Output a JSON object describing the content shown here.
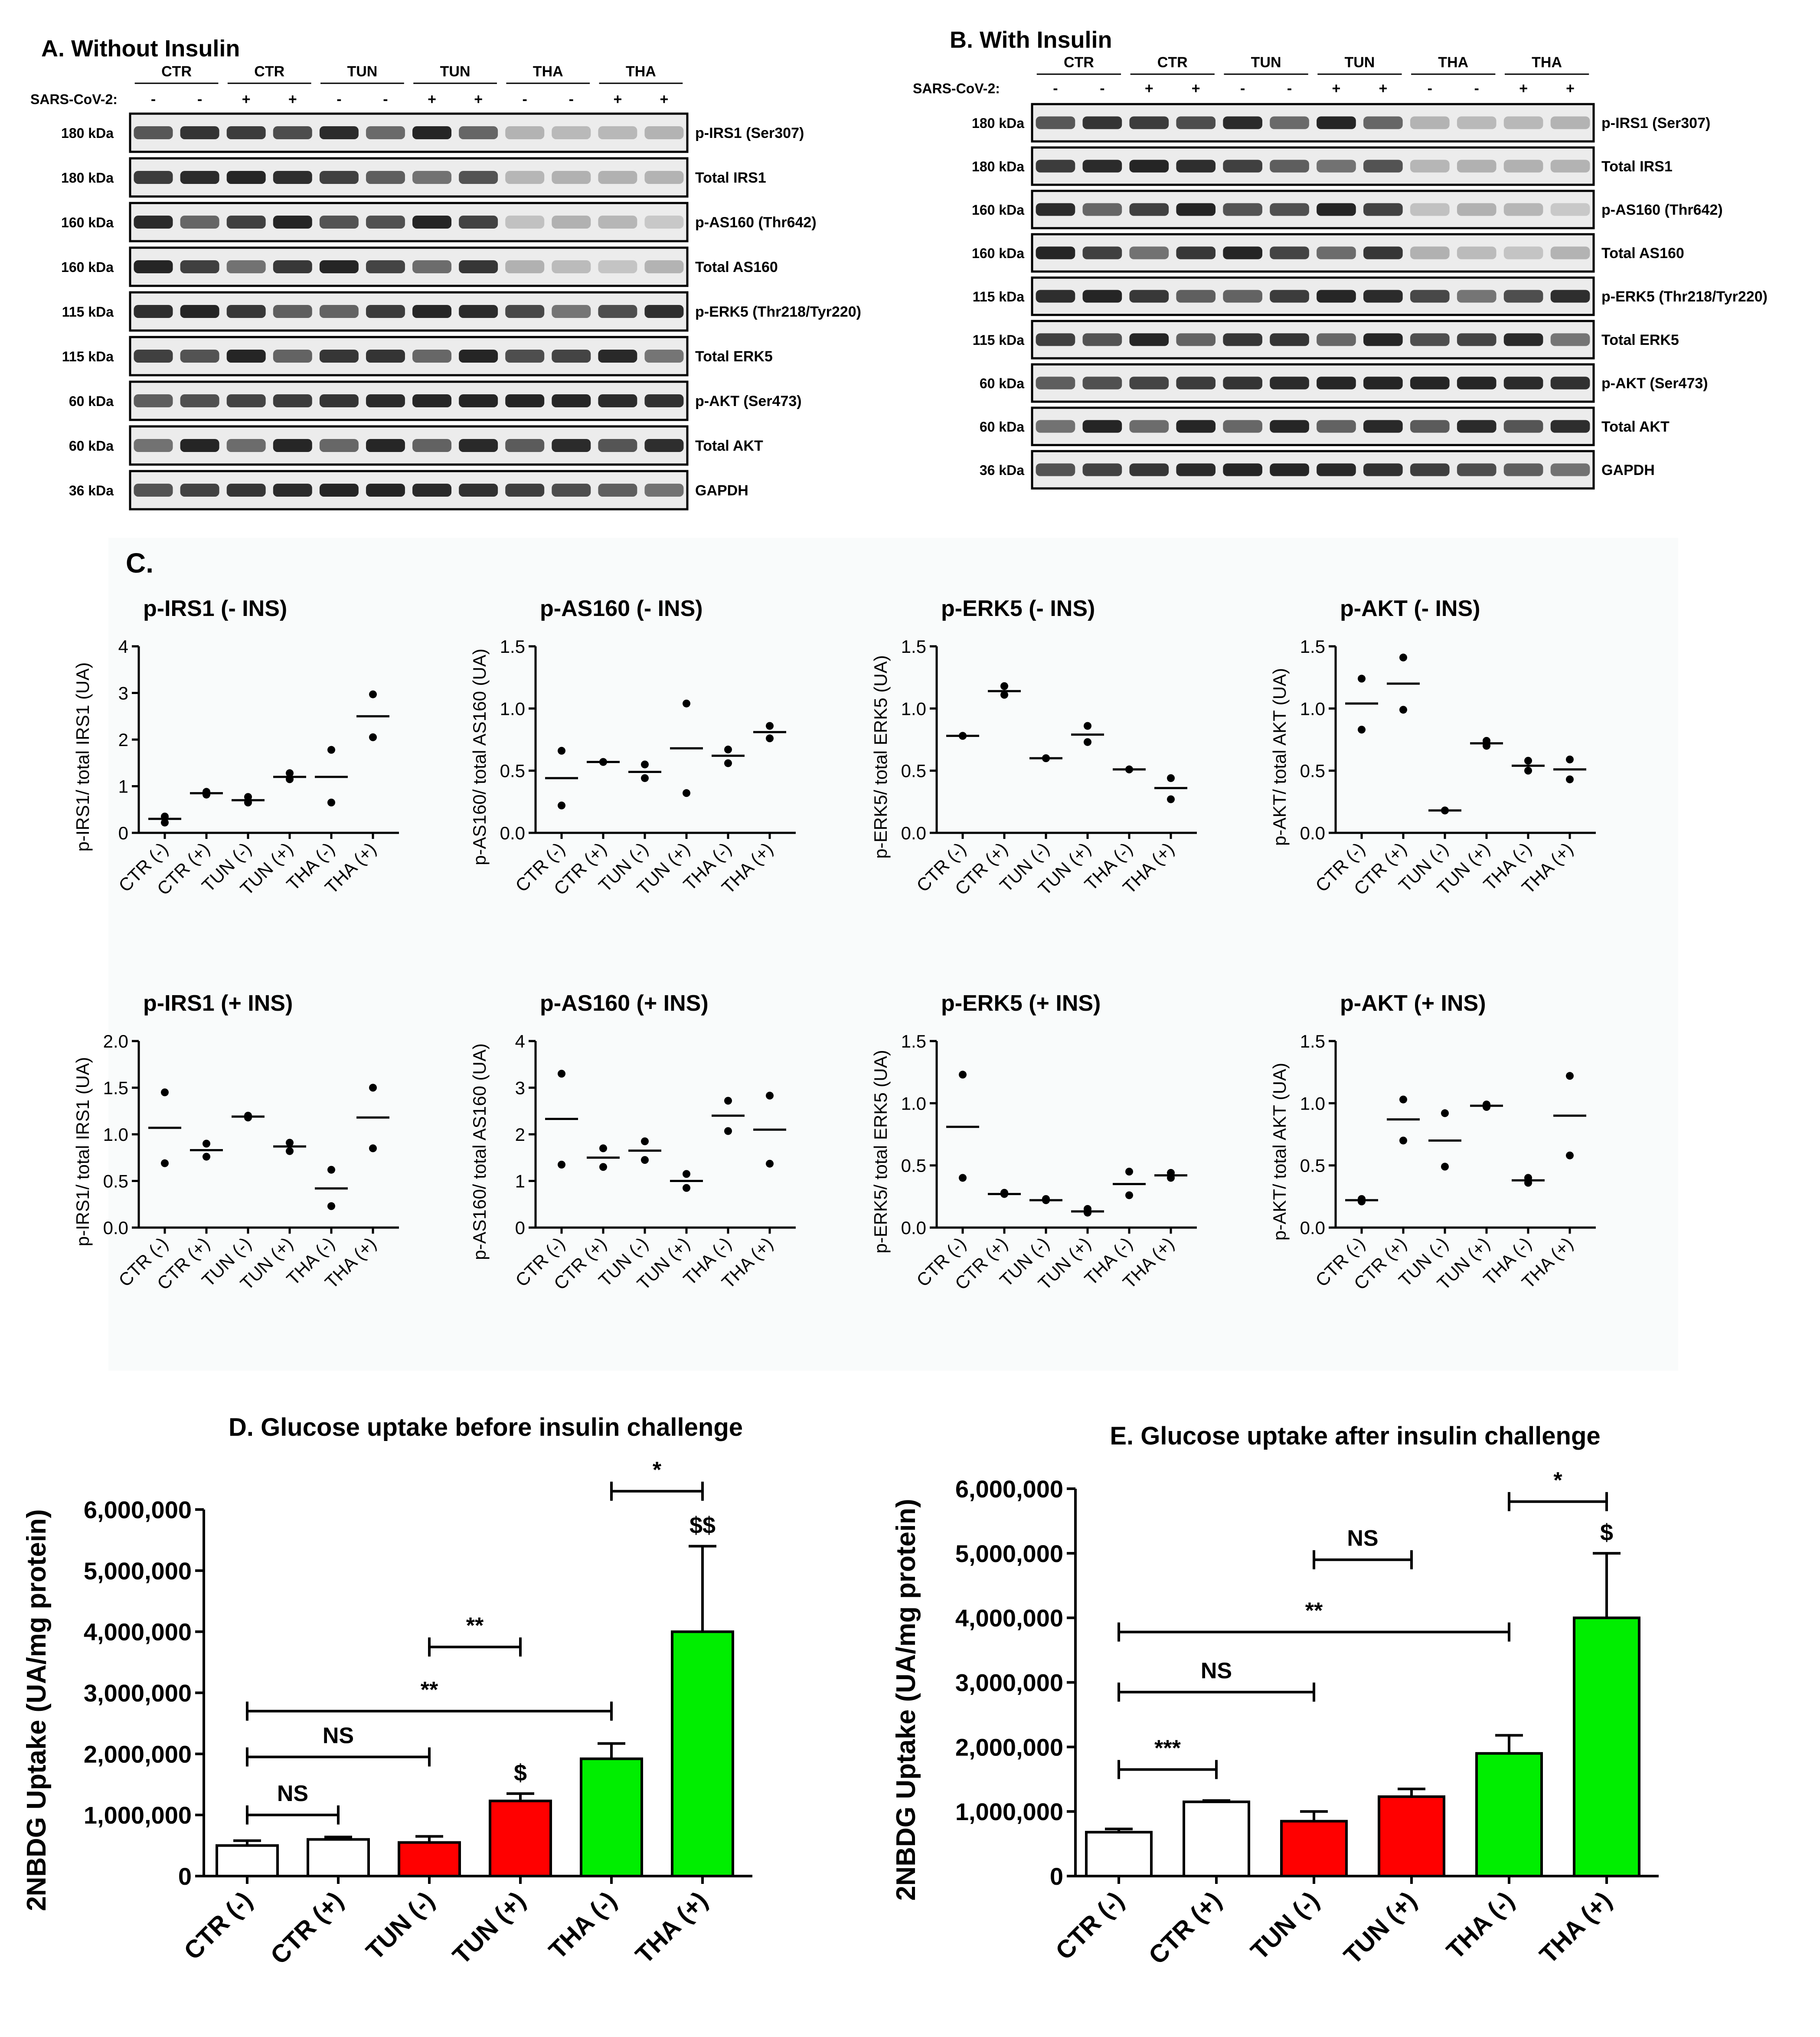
{
  "blots": {
    "A": {
      "title": "A. Without Insulin",
      "sars_label": "SARS-CoV-2:",
      "groups": [
        "CTR",
        "CTR",
        "TUN",
        "TUN",
        "THA",
        "THA"
      ],
      "signs": [
        "-",
        "-",
        "+",
        "+",
        "-",
        "-",
        "+",
        "+",
        "-",
        "-",
        "+",
        "+"
      ],
      "rows": [
        {
          "kda": "180 kDa",
          "label": "p-IRS1 (Ser307)"
        },
        {
          "kda": "180 kDa",
          "label": "Total IRS1"
        },
        {
          "kda": "160 kDa",
          "label": "p-AS160 (Thr642)"
        },
        {
          "kda": "160 kDa",
          "label": "Total AS160"
        },
        {
          "kda": "115 kDa",
          "label": "p-ERK5 (Thr218/Tyr220)"
        },
        {
          "kda": "115 kDa",
          "label": "Total ERK5"
        },
        {
          "kda": "60 kDa",
          "label": "p-AKT (Ser473)"
        },
        {
          "kda": "60 kDa",
          "label": "Total AKT"
        },
        {
          "kda": "36 kDa",
          "label": "GAPDH"
        }
      ]
    },
    "B": {
      "title": "B. With Insulin",
      "sars_label": "SARS-CoV-2:",
      "groups": [
        "CTR",
        "CTR",
        "TUN",
        "TUN",
        "THA",
        "THA"
      ],
      "signs": [
        "-",
        "-",
        "+",
        "+",
        "-",
        "-",
        "+",
        "+",
        "-",
        "-",
        "+",
        "+"
      ],
      "rows": [
        {
          "kda": "180 kDa",
          "label": "p-IRS1 (Ser307)"
        },
        {
          "kda": "180 kDa",
          "label": "Total IRS1"
        },
        {
          "kda": "160 kDa",
          "label": "p-AS160 (Thr642)"
        },
        {
          "kda": "160 kDa",
          "label": "Total AS160"
        },
        {
          "kda": "115 kDa",
          "label": "p-ERK5 (Thr218/Tyr220)"
        },
        {
          "kda": "115 kDa",
          "label": "Total ERK5"
        },
        {
          "kda": "60 kDa",
          "label": "p-AKT (Ser473)"
        },
        {
          "kda": "60 kDa",
          "label": "Total AKT"
        },
        {
          "kda": "36 kDa",
          "label": "GAPDH"
        }
      ]
    }
  },
  "section_c_label": "C.",
  "chart_data": [
    {
      "id": "c1",
      "type": "scatter",
      "title": "p-IRS1 (- INS)",
      "ylabel": "p-IRS1/ total IRS1 (UA)",
      "categories": [
        "CTR (-)",
        "CTR (+)",
        "TUN (-)",
        "TUN (+)",
        "THA (-)",
        "THA (+)"
      ],
      "ylim": [
        0,
        4
      ],
      "yticks": [
        "0",
        "1",
        "2",
        "3",
        "4"
      ],
      "points": [
        [
          0.35,
          0.22
        ],
        [
          0.88,
          0.82
        ],
        [
          0.77,
          0.65
        ],
        [
          1.28,
          1.15
        ],
        [
          1.78,
          0.65
        ],
        [
          2.97,
          2.05
        ]
      ],
      "means": [
        0.3,
        0.85,
        0.7,
        1.2,
        1.2,
        2.5
      ]
    },
    {
      "id": "c2",
      "type": "scatter",
      "title": "p-AS160 (- INS)",
      "ylabel": "p-AS160/ total AS160 (UA)",
      "categories": [
        "CTR (-)",
        "CTR (+)",
        "TUN (-)",
        "TUN (+)",
        "THA (-)",
        "THA (+)"
      ],
      "ylim": [
        0,
        1.5
      ],
      "yticks": [
        "0.0",
        "0.5",
        "1.0",
        "1.5"
      ],
      "points": [
        [
          0.66,
          0.22
        ],
        [
          0.57,
          0.57
        ],
        [
          0.55,
          0.44
        ],
        [
          1.04,
          0.32
        ],
        [
          0.67,
          0.56
        ],
        [
          0.86,
          0.76
        ]
      ],
      "means": [
        0.44,
        0.57,
        0.49,
        0.68,
        0.62,
        0.81
      ]
    },
    {
      "id": "c3",
      "type": "scatter",
      "title": "p-ERK5 (- INS)",
      "ylabel": "p-ERK5/ total ERK5 (UA)",
      "categories": [
        "CTR (-)",
        "CTR (+)",
        "TUN (-)",
        "TUN (+)",
        "THA (-)",
        "THA (+)"
      ],
      "ylim": [
        0,
        1.5
      ],
      "yticks": [
        "0.0",
        "0.5",
        "1.0",
        "1.5"
      ],
      "points": [
        [
          0.78,
          0.78
        ],
        [
          1.18,
          1.11
        ],
        [
          0.6,
          0.6
        ],
        [
          0.86,
          0.73
        ],
        [
          0.51,
          0.51
        ],
        [
          0.44,
          0.27
        ]
      ],
      "means": [
        0.78,
        1.14,
        0.6,
        0.79,
        0.51,
        0.36
      ]
    },
    {
      "id": "c4",
      "type": "scatter",
      "title": "p-AKT (- INS)",
      "ylabel": "p-AKT/ total AKT (UA)",
      "categories": [
        "CTR (-)",
        "CTR (+)",
        "TUN (-)",
        "TUN (+)",
        "THA (-)",
        "THA (+)"
      ],
      "ylim": [
        0,
        1.5
      ],
      "yticks": [
        "0.0",
        "0.5",
        "1.0",
        "1.5"
      ],
      "points": [
        [
          1.24,
          0.83
        ],
        [
          1.41,
          0.99
        ],
        [
          0.18,
          0.18
        ],
        [
          0.74,
          0.7
        ],
        [
          0.58,
          0.5
        ],
        [
          0.59,
          0.43
        ]
      ],
      "means": [
        1.04,
        1.2,
        0.18,
        0.72,
        0.54,
        0.51
      ]
    },
    {
      "id": "c5",
      "type": "scatter",
      "title": "p-IRS1 (+ INS)",
      "ylabel": "p-IRS1/ total IRS1 (UA)",
      "categories": [
        "CTR (-)",
        "CTR (+)",
        "TUN (-)",
        "TUN (+)",
        "THA (-)",
        "THA (+)"
      ],
      "ylim": [
        0,
        2
      ],
      "yticks": [
        "0.0",
        "0.5",
        "1.0",
        "1.5",
        "2.0"
      ],
      "points": [
        [
          1.45,
          0.69
        ],
        [
          0.9,
          0.76
        ],
        [
          1.2,
          1.18
        ],
        [
          0.91,
          0.82
        ],
        [
          0.62,
          0.23
        ],
        [
          1.5,
          0.85
        ]
      ],
      "means": [
        1.07,
        0.83,
        1.19,
        0.87,
        0.42,
        1.18
      ]
    },
    {
      "id": "c6",
      "type": "scatter",
      "title": "p-AS160 (+ INS)",
      "ylabel": "p-AS160/ total AS160 (UA)",
      "categories": [
        "CTR (-)",
        "CTR (+)",
        "TUN (-)",
        "TUN (+)",
        "THA (-)",
        "THA (+)"
      ],
      "ylim": [
        0,
        4
      ],
      "yticks": [
        "0",
        "1",
        "2",
        "3",
        "4"
      ],
      "points": [
        [
          3.3,
          1.35
        ],
        [
          1.7,
          1.3
        ],
        [
          1.85,
          1.45
        ],
        [
          1.15,
          0.85
        ],
        [
          2.72,
          2.07
        ],
        [
          2.83,
          1.37
        ]
      ],
      "means": [
        2.33,
        1.5,
        1.65,
        1.0,
        2.4,
        2.1
      ]
    },
    {
      "id": "c7",
      "type": "scatter",
      "title": "p-ERK5 (+ INS)",
      "ylabel": "p-ERK5/ total ERK5 (UA)",
      "categories": [
        "CTR (-)",
        "CTR (+)",
        "TUN (-)",
        "TUN (+)",
        "THA (-)",
        "THA (+)"
      ],
      "ylim": [
        0,
        1.5
      ],
      "yticks": [
        "0.0",
        "0.5",
        "1.0",
        "1.5"
      ],
      "points": [
        [
          1.23,
          0.4
        ],
        [
          0.28,
          0.27
        ],
        [
          0.23,
          0.22
        ],
        [
          0.15,
          0.12
        ],
        [
          0.45,
          0.26
        ],
        [
          0.44,
          0.4
        ]
      ],
      "means": [
        0.81,
        0.27,
        0.22,
        0.13,
        0.35,
        0.42
      ]
    },
    {
      "id": "c8",
      "type": "scatter",
      "title": "p-AKT (+ INS)",
      "ylabel": "p-AKT/ total AKT (UA)",
      "categories": [
        "CTR (-)",
        "CTR (+)",
        "TUN (-)",
        "TUN (+)",
        "THA (-)",
        "THA (+)"
      ],
      "ylim": [
        0,
        1.5
      ],
      "yticks": [
        "0.0",
        "0.5",
        "1.0",
        "1.5"
      ],
      "points": [
        [
          0.23,
          0.21
        ],
        [
          1.03,
          0.7
        ],
        [
          0.92,
          0.49
        ],
        [
          0.99,
          0.97
        ],
        [
          0.4,
          0.36
        ],
        [
          1.22,
          0.58
        ]
      ],
      "means": [
        0.22,
        0.87,
        0.7,
        0.98,
        0.38,
        0.9
      ]
    },
    {
      "id": "d",
      "type": "bar",
      "title": "D. Glucose uptake before insulin challenge",
      "ylabel": "2NBDG Uptake (UA/mg protein)",
      "categories": [
        "CTR (-)",
        "CTR (+)",
        "TUN (-)",
        "TUN (+)",
        "THA (-)",
        "THA (+)"
      ],
      "values": [
        500000,
        600000,
        550000,
        1230000,
        1920000,
        4000000
      ],
      "errors": [
        80000,
        40000,
        100000,
        120000,
        250000,
        1400000
      ],
      "colors": [
        "#ffffff",
        "#ffffff",
        "#ff0000",
        "#ff0000",
        "#00ee00",
        "#00ee00"
      ],
      "ylim": [
        0,
        6000000
      ],
      "yticks": [
        "0",
        "1,000,000",
        "2,000,000",
        "3,000,000",
        "4,000,000",
        "5,000,000",
        "6,000,000"
      ],
      "marks": [
        {
          "i": 3,
          "text": "$"
        },
        {
          "i": 5,
          "text": "$$"
        }
      ],
      "brackets": [
        {
          "from": 0,
          "to": 1,
          "level": 1000000,
          "label": "NS"
        },
        {
          "from": 0,
          "to": 2,
          "level": 1950000,
          "label": "NS"
        },
        {
          "from": 0,
          "to": 4,
          "level": 2700000,
          "label": "**"
        },
        {
          "from": 2,
          "to": 3,
          "level": 3750000,
          "label": "**"
        },
        {
          "from": 4,
          "to": 5,
          "level": 6300000,
          "label": "*"
        }
      ]
    },
    {
      "id": "e",
      "type": "bar",
      "title": "E. Glucose uptake after insulin challenge",
      "ylabel": "2NBDG Uptake (UA/mg protein)",
      "categories": [
        "CTR (-)",
        "CTR (+)",
        "TUN (-)",
        "TUN (+)",
        "THA (-)",
        "THA (+)"
      ],
      "values": [
        680000,
        1150000,
        850000,
        1230000,
        1900000,
        4000000
      ],
      "errors": [
        50000,
        20000,
        150000,
        120000,
        280000,
        1000000
      ],
      "colors": [
        "#ffffff",
        "#ffffff",
        "#ff0000",
        "#ff0000",
        "#00ee00",
        "#00ee00"
      ],
      "ylim": [
        0,
        6000000
      ],
      "yticks": [
        "0",
        "1,000,000",
        "2,000,000",
        "3,000,000",
        "4,000,000",
        "5,000,000",
        "6,000,000"
      ],
      "marks": [
        {
          "i": 5,
          "text": "$"
        }
      ],
      "brackets": [
        {
          "from": 0,
          "to": 1,
          "level": 1650000,
          "label": "***"
        },
        {
          "from": 0,
          "to": 2,
          "level": 2850000,
          "label": "NS"
        },
        {
          "from": 0,
          "to": 4,
          "level": 3780000,
          "label": "**"
        },
        {
          "from": 2,
          "to": 3,
          "level": 4900000,
          "label": "NS"
        },
        {
          "from": 4,
          "to": 5,
          "level": 5800000,
          "label": "*"
        }
      ]
    }
  ]
}
